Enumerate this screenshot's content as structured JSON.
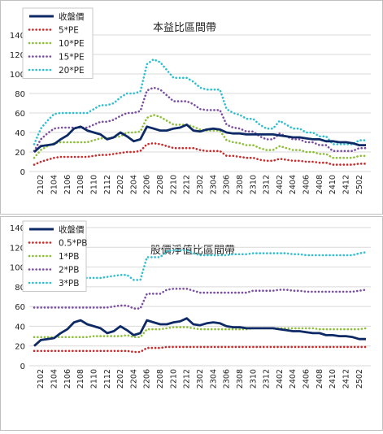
{
  "chart_data": [
    {
      "type": "line",
      "title": "本益比區間帶",
      "ylim": [
        0,
        140
      ],
      "y_ticks": [
        0,
        20,
        40,
        60,
        80,
        100,
        120,
        140
      ],
      "grid": "horizontal",
      "legend_placement": "top-left",
      "x": [
        "2101",
        "2102",
        "2103",
        "2104",
        "2105",
        "2106",
        "2107",
        "2108",
        "2109",
        "2110",
        "2111",
        "2112",
        "2201",
        "2202",
        "2203",
        "2204",
        "2205",
        "2206",
        "2207",
        "2208",
        "2209",
        "2210",
        "2211",
        "2212",
        "2301",
        "2302",
        "2303",
        "2304",
        "2305",
        "2306",
        "2307",
        "2308",
        "2309",
        "2310",
        "2311",
        "2312",
        "2401",
        "2402",
        "2403",
        "2404",
        "2405",
        "2406",
        "2407",
        "2408",
        "2409",
        "2410",
        "2411",
        "2412",
        "2501",
        "2502",
        "2503"
      ],
      "x_tick_labels": [
        "2102",
        "2104",
        "2106",
        "2108",
        "2110",
        "2112",
        "2202",
        "2204",
        "2206",
        "2208",
        "2210",
        "2212",
        "2302",
        "2304",
        "2306",
        "2308",
        "2310",
        "2312",
        "2402",
        "2404",
        "2406",
        "2408",
        "2410",
        "2412",
        "2502"
      ],
      "series": [
        {
          "name": "收盤價",
          "color": "#0d2a66",
          "style": "solid",
          "values": [
            20,
            26,
            27,
            28,
            33,
            37,
            44,
            46,
            42,
            40,
            38,
            33,
            35,
            40,
            36,
            31,
            33,
            46,
            44,
            42,
            42,
            44,
            45,
            48,
            42,
            41,
            43,
            44,
            43,
            40,
            39,
            39,
            38,
            38,
            38,
            38,
            38,
            37,
            36,
            35,
            35,
            34,
            33,
            33,
            31,
            31,
            30,
            30,
            29,
            27,
            27
          ]
        },
        {
          "name": "5*PE",
          "color": "#cc2a2a",
          "style": "dotted",
          "values": [
            7,
            10,
            12,
            14,
            15,
            15,
            15,
            15,
            15,
            16,
            17,
            17,
            18,
            19,
            20,
            20,
            21,
            28,
            29,
            28,
            26,
            24,
            24,
            24,
            24,
            22,
            21,
            21,
            21,
            16,
            16,
            15,
            14,
            14,
            12,
            11,
            11,
            13,
            12,
            11,
            11,
            10,
            10,
            9,
            9,
            7,
            7,
            7,
            7,
            8,
            8
          ]
        },
        {
          "name": "10*PE",
          "color": "#8dbf3a",
          "style": "dotted",
          "values": [
            14,
            22,
            26,
            29,
            30,
            30,
            30,
            30,
            30,
            32,
            34,
            34,
            35,
            36,
            40,
            40,
            41,
            55,
            58,
            56,
            52,
            48,
            48,
            48,
            46,
            43,
            42,
            42,
            42,
            32,
            30,
            29,
            27,
            27,
            24,
            22,
            22,
            26,
            24,
            22,
            22,
            20,
            20,
            18,
            18,
            14,
            14,
            14,
            14,
            16,
            16
          ]
        },
        {
          "name": "15*PE",
          "color": "#7a4fa3",
          "style": "dotted",
          "values": [
            21,
            33,
            39,
            44,
            45,
            45,
            45,
            45,
            45,
            48,
            51,
            51,
            53,
            57,
            60,
            60,
            62,
            83,
            86,
            84,
            78,
            72,
            72,
            72,
            69,
            64,
            63,
            63,
            63,
            48,
            45,
            44,
            41,
            41,
            36,
            33,
            33,
            39,
            36,
            33,
            33,
            30,
            30,
            27,
            27,
            21,
            21,
            21,
            21,
            24,
            24
          ]
        },
        {
          "name": "20*PE",
          "color": "#2fbfd1",
          "style": "dotted",
          "values": [
            28,
            44,
            52,
            59,
            60,
            60,
            60,
            60,
            60,
            64,
            68,
            68,
            70,
            76,
            80,
            80,
            82,
            110,
            115,
            112,
            104,
            96,
            96,
            96,
            92,
            86,
            84,
            84,
            84,
            64,
            60,
            58,
            54,
            54,
            48,
            44,
            44,
            52,
            48,
            44,
            44,
            40,
            40,
            36,
            36,
            28,
            28,
            28,
            28,
            32,
            32
          ]
        }
      ]
    },
    {
      "type": "line",
      "title": "股價淨值比區間帶",
      "ylim": [
        0,
        140
      ],
      "y_ticks": [
        0,
        20,
        40,
        60,
        80,
        100,
        120,
        140
      ],
      "grid": "horizontal",
      "legend_placement": "top-left",
      "x": [
        "2101",
        "2102",
        "2103",
        "2104",
        "2105",
        "2106",
        "2107",
        "2108",
        "2109",
        "2110",
        "2111",
        "2112",
        "2201",
        "2202",
        "2203",
        "2204",
        "2205",
        "2206",
        "2207",
        "2208",
        "2209",
        "2210",
        "2211",
        "2212",
        "2301",
        "2302",
        "2303",
        "2304",
        "2305",
        "2306",
        "2307",
        "2308",
        "2309",
        "2310",
        "2311",
        "2312",
        "2401",
        "2402",
        "2403",
        "2404",
        "2405",
        "2406",
        "2407",
        "2408",
        "2409",
        "2410",
        "2411",
        "2412",
        "2501",
        "2502",
        "2503"
      ],
      "x_tick_labels": [
        "2102",
        "2104",
        "2106",
        "2108",
        "2110",
        "2112",
        "2202",
        "2204",
        "2206",
        "2208",
        "2210",
        "2212",
        "2302",
        "2304",
        "2306",
        "2308",
        "2310",
        "2312",
        "2402",
        "2404",
        "2406",
        "2408",
        "2410",
        "2412",
        "2502"
      ],
      "series": [
        {
          "name": "收盤價",
          "color": "#0d2a66",
          "style": "solid",
          "values": [
            20,
            26,
            27,
            28,
            33,
            37,
            44,
            46,
            42,
            40,
            38,
            33,
            35,
            40,
            36,
            31,
            33,
            46,
            44,
            42,
            42,
            44,
            45,
            48,
            42,
            41,
            43,
            44,
            43,
            40,
            39,
            39,
            38,
            38,
            38,
            38,
            38,
            37,
            36,
            35,
            35,
            34,
            33,
            33,
            31,
            31,
            30,
            30,
            29,
            27,
            27
          ]
        },
        {
          "name": "0.5*PB",
          "color": "#cc2a2a",
          "style": "dotted",
          "values": [
            15,
            15,
            15,
            15,
            15,
            15,
            15,
            15,
            15,
            15,
            15,
            15,
            15,
            15,
            15,
            14,
            14,
            18,
            18,
            18,
            19,
            19,
            19,
            19,
            19,
            19,
            19,
            19,
            19,
            19,
            19,
            19,
            19,
            19,
            19,
            19,
            19,
            19,
            19,
            19,
            19,
            19,
            19,
            19,
            19,
            19,
            19,
            19,
            19,
            19,
            19
          ]
        },
        {
          "name": "1*PB",
          "color": "#8dbf3a",
          "style": "dotted",
          "values": [
            29,
            29,
            29,
            29,
            29,
            29,
            29,
            29,
            29,
            30,
            30,
            30,
            30,
            30,
            31,
            29,
            29,
            37,
            37,
            37,
            38,
            39,
            39,
            39,
            38,
            37,
            37,
            37,
            37,
            37,
            37,
            37,
            37,
            38,
            38,
            38,
            38,
            38,
            38,
            38,
            38,
            38,
            38,
            37,
            37,
            37,
            37,
            37,
            37,
            37,
            38
          ]
        },
        {
          "name": "2*PB",
          "color": "#7a4fa3",
          "style": "dotted",
          "values": [
            59,
            59,
            59,
            59,
            59,
            59,
            59,
            59,
            59,
            59,
            59,
            59,
            60,
            61,
            61,
            58,
            58,
            73,
            73,
            73,
            77,
            78,
            78,
            78,
            76,
            74,
            74,
            74,
            74,
            74,
            74,
            74,
            74,
            76,
            76,
            76,
            76,
            77,
            77,
            76,
            76,
            75,
            75,
            75,
            75,
            75,
            75,
            75,
            75,
            76,
            77
          ]
        },
        {
          "name": "3*PB",
          "color": "#2fbfd1",
          "style": "dotted",
          "values": [
            88,
            88,
            88,
            88,
            88,
            88,
            88,
            89,
            89,
            89,
            89,
            90,
            91,
            92,
            92,
            87,
            87,
            110,
            110,
            110,
            116,
            117,
            117,
            117,
            114,
            112,
            112,
            112,
            112,
            112,
            113,
            113,
            113,
            114,
            114,
            114,
            114,
            114,
            114,
            113,
            113,
            112,
            112,
            112,
            112,
            112,
            112,
            112,
            112,
            114,
            115
          ]
        }
      ]
    }
  ]
}
